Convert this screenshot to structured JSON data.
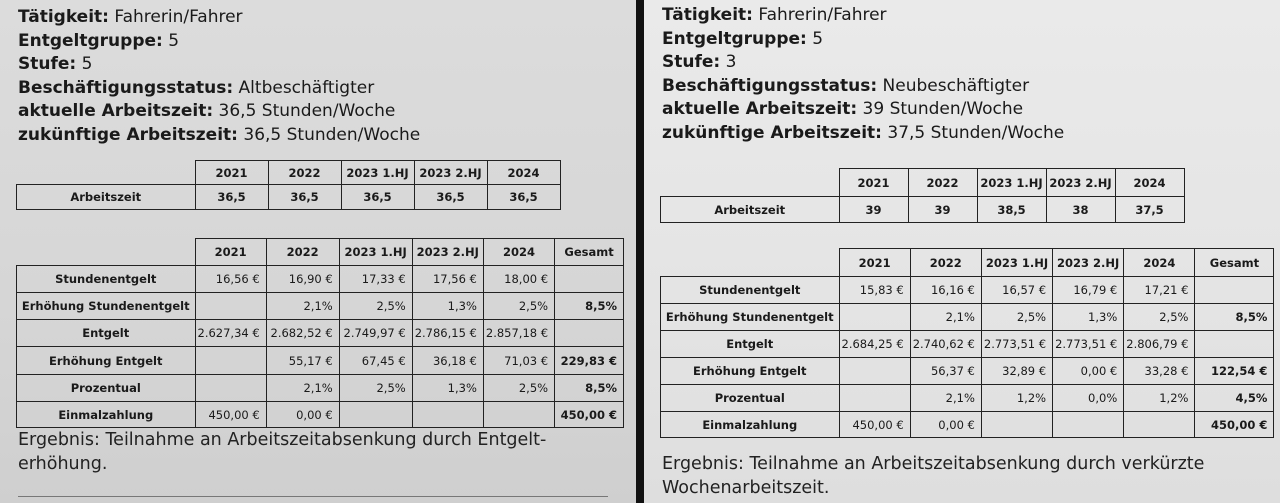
{
  "left": {
    "info": [
      {
        "label": "Tätigkeit:",
        "value": "Fahrerin/Fahrer"
      },
      {
        "label": "Entgeltgruppe:",
        "value": "5"
      },
      {
        "label": "Stufe:",
        "value": "5"
      },
      {
        "label": "Beschäftigungsstatus:",
        "value": "Altbeschäftigter"
      },
      {
        "label": "aktuelle Arbeitszeit:",
        "value": "36,5 Stunden/Woche"
      },
      {
        "label": "zukünftige Arbeitszeit:",
        "value": "36,5 Stunden/Woche"
      }
    ],
    "years": [
      "2021",
      "2022",
      "2023 1.HJ",
      "2023 2.HJ",
      "2024"
    ],
    "gesamt_label": "Gesamt",
    "arbeitszeit": {
      "label": "Arbeitszeit",
      "values": [
        "36,5",
        "36,5",
        "36,5",
        "36,5",
        "36,5"
      ]
    },
    "rows": [
      {
        "label": "Stundenentgelt",
        "values": [
          "16,56 €",
          "16,90 €",
          "17,33 €",
          "17,56 €",
          "18,00 €"
        ],
        "total": ""
      },
      {
        "label": "Erhöhung Stundenentgelt",
        "values": [
          "",
          "2,1%",
          "2,5%",
          "1,3%",
          "2,5%"
        ],
        "total": "8,5%"
      },
      {
        "label": "Entgelt",
        "values": [
          "2.627,34 €",
          "2.682,52 €",
          "2.749,97 €",
          "2.786,15 €",
          "2.857,18 €"
        ],
        "total": ""
      },
      {
        "label": "Erhöhung Entgelt",
        "values": [
          "",
          "55,17 €",
          "67,45 €",
          "36,18 €",
          "71,03 €"
        ],
        "total": "229,83 €"
      },
      {
        "label": "Prozentual",
        "values": [
          "",
          "2,1%",
          "2,5%",
          "1,3%",
          "2,5%"
        ],
        "total": "8,5%"
      },
      {
        "label": "Einmalzahlung",
        "values": [
          "450,00 €",
          "0,00 €",
          "",
          "",
          ""
        ],
        "total": "450,00 €"
      }
    ],
    "result_line1": "Ergebnis: Teilnahme an Arbeitszeitabsenkung durch Entgelt-",
    "result_line2": "erhöhung."
  },
  "right": {
    "info": [
      {
        "label": "Tätigkeit:",
        "value": "Fahrerin/Fahrer"
      },
      {
        "label": "Entgeltgruppe:",
        "value": "5"
      },
      {
        "label": "Stufe:",
        "value": "3"
      },
      {
        "label": "Beschäftigungsstatus:",
        "value": "Neubeschäftigter"
      },
      {
        "label": "aktuelle Arbeitszeit:",
        "value": "39 Stunden/Woche"
      },
      {
        "label": "zukünftige Arbeitszeit:",
        "value": "37,5 Stunden/Woche"
      }
    ],
    "years": [
      "2021",
      "2022",
      "2023 1.HJ",
      "2023 2.HJ",
      "2024"
    ],
    "gesamt_label": "Gesamt",
    "arbeitszeit": {
      "label": "Arbeitszeit",
      "values": [
        "39",
        "39",
        "38,5",
        "38",
        "37,5"
      ]
    },
    "rows": [
      {
        "label": "Stundenentgelt",
        "values": [
          "15,83 €",
          "16,16 €",
          "16,57 €",
          "16,79 €",
          "17,21 €"
        ],
        "total": ""
      },
      {
        "label": "Erhöhung Stundenentgelt",
        "values": [
          "",
          "2,1%",
          "2,5%",
          "1,3%",
          "2,5%"
        ],
        "total": "8,5%"
      },
      {
        "label": "Entgelt",
        "values": [
          "2.684,25 €",
          "2.740,62 €",
          "2.773,51 €",
          "2.773,51 €",
          "2.806,79 €"
        ],
        "total": ""
      },
      {
        "label": "Erhöhung Entgelt",
        "values": [
          "",
          "56,37 €",
          "32,89 €",
          "0,00 €",
          "33,28 €"
        ],
        "total": "122,54 €"
      },
      {
        "label": "Prozentual",
        "values": [
          "",
          "2,1%",
          "1,2%",
          "0,0%",
          "1,2%"
        ],
        "total": "4,5%"
      },
      {
        "label": "Einmalzahlung",
        "values": [
          "450,00 €",
          "0,00 €",
          "",
          "",
          ""
        ],
        "total": "450,00 €"
      }
    ],
    "result_line1": "Ergebnis: Teilnahme an Arbeitszeitabsenkung durch verkürzte",
    "result_line2": "Wochenarbeitszeit."
  }
}
